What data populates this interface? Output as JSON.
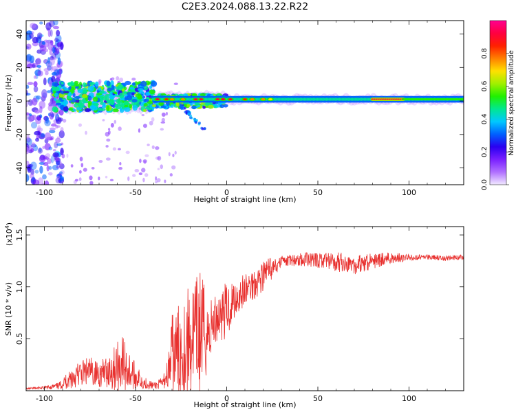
{
  "figure_title": "C2E3.2024.088.13.22.R22",
  "chart_data": [
    {
      "type": "heatmap",
      "title": "C2E3.2024.088.13.22.R22",
      "xlabel": "Height of straight line (km)",
      "ylabel": "Frequency (Hz)",
      "xlim": [
        -110,
        130
      ],
      "ylim": [
        -50,
        48
      ],
      "xticks": [
        -100,
        -50,
        0,
        50,
        100
      ],
      "yticks": [
        -40,
        -20,
        0,
        20,
        40
      ],
      "xtick_labels": [
        "-100",
        "-50",
        "0",
        "50",
        "100"
      ],
      "ytick_labels": [
        "-40",
        "-20",
        "0",
        "20",
        "40"
      ],
      "colorbar": {
        "label": "Normalized spectral amplitude",
        "range": [
          0,
          1
        ],
        "ticks": [
          0.0,
          0.2,
          0.4,
          0.6,
          0.8
        ],
        "tick_labels": [
          "0.0",
          "0.2",
          "0.4",
          "0.6",
          "0.8"
        ],
        "colormap": [
          "#f2eaff",
          "#b070ff",
          "#7a20ff",
          "#2a00f0",
          "#0060ff",
          "#00c8ff",
          "#00e890",
          "#20f000",
          "#a0f000",
          "#ffe000",
          "#ff8000",
          "#ff2000",
          "#ff0040",
          "#ff0090"
        ]
      },
      "features": [
        {
          "x_range": [
            -110,
            -92
          ],
          "freq_range": [
            -50,
            48
          ],
          "amplitude": 0.08,
          "description_label": ""
        },
        {
          "x_range": [
            -95,
            -40
          ],
          "freq_range": [
            -8,
            12
          ],
          "amplitude": 0.45
        },
        {
          "x_range": [
            -40,
            0
          ],
          "freq_range": [
            -3,
            5
          ],
          "amplitude": 0.7
        },
        {
          "x_range": [
            0,
            130
          ],
          "freq_range": [
            -2,
            3
          ],
          "amplitude": 0.5
        },
        {
          "x_range": [
            80,
            97
          ],
          "freq_range": [
            0,
            2
          ],
          "amplitude": 0.95
        }
      ]
    },
    {
      "type": "line",
      "xlabel": "Height of straight line (km)",
      "ylabel": "SNR (10 * v/v)",
      "y_multiplier": "(x10",
      "y_multiplier_exp": "4",
      "y_multiplier_close": ")",
      "xlim": [
        -110,
        130
      ],
      "ylim": [
        0,
        1.58
      ],
      "xticks": [
        -100,
        -50,
        0,
        50,
        100
      ],
      "yticks": [
        0.5,
        1.0,
        1.5
      ],
      "xtick_labels": [
        "-100",
        "-50",
        "0",
        "50",
        "100"
      ],
      "ytick_labels": [
        "0.5",
        "1.0",
        "1.5"
      ],
      "color": "#e8302e",
      "series": [
        {
          "x": [
            -110,
            -100,
            -92,
            -85,
            -80,
            -75,
            -70,
            -65,
            -60,
            -57,
            -55,
            -50,
            -45,
            -40,
            -35,
            -32,
            -30,
            -25,
            -20,
            -17,
            -15,
            -12,
            -10,
            -5,
            0,
            5,
            10,
            15,
            20,
            25,
            30,
            40,
            50,
            60,
            70,
            80,
            90,
            100,
            110,
            120,
            130
          ],
          "y": [
            0.02,
            0.03,
            0.05,
            0.14,
            0.18,
            0.2,
            0.17,
            0.2,
            0.26,
            0.3,
            0.24,
            0.15,
            0.08,
            0.05,
            0.08,
            0.2,
            0.35,
            0.45,
            0.55,
            0.6,
            0.62,
            0.6,
            0.58,
            0.75,
            0.8,
            0.92,
            0.98,
            1.05,
            1.12,
            1.22,
            1.28,
            1.3,
            1.31,
            1.3,
            1.27,
            1.29,
            1.31,
            1.3,
            1.3,
            1.29,
            1.3
          ],
          "noise": [
            0.01,
            0.02,
            0.04,
            0.14,
            0.16,
            0.18,
            0.15,
            0.2,
            0.3,
            0.35,
            0.3,
            0.15,
            0.07,
            0.04,
            0.07,
            0.2,
            0.55,
            0.55,
            0.7,
            0.65,
            0.8,
            0.6,
            0.4,
            0.3,
            0.35,
            0.25,
            0.2,
            0.2,
            0.18,
            0.12,
            0.06,
            0.08,
            0.1,
            0.12,
            0.12,
            0.1,
            0.07,
            0.04,
            0.03,
            0.03,
            0.03
          ]
        }
      ]
    }
  ]
}
